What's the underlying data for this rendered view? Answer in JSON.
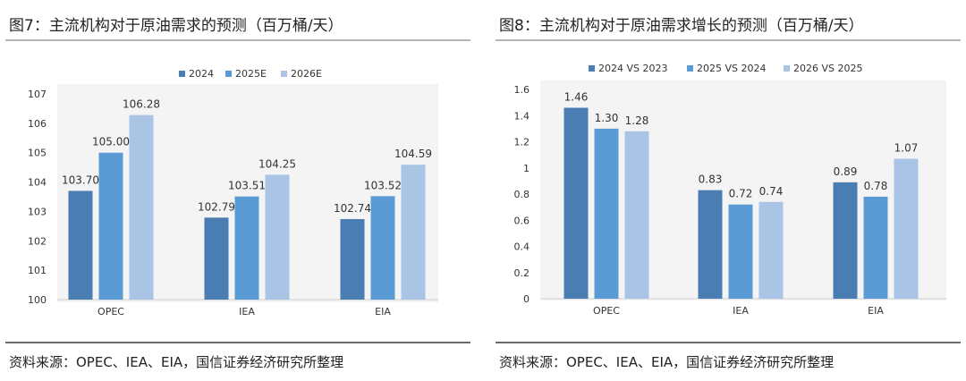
{
  "left": {
    "title": "图7：主流机构对于原油需求的预测（百万桶/天）",
    "source": "资料来源：OPEC、IEA、EIA，国信证券经济研究所整理"
  },
  "right": {
    "title": "图8：主流机构对于原油需求增长的预测（百万桶/天）",
    "source": "资料来源：OPEC、IEA、EIA，国信证券经济研究所整理"
  },
  "chart_data": [
    {
      "type": "bar",
      "title": "图7：主流机构对于原油需求的预测（百万桶/天）",
      "categories": [
        "OPEC",
        "IEA",
        "EIA"
      ],
      "series": [
        {
          "name": "2024",
          "values": [
            103.7,
            102.79,
            102.74
          ],
          "labels": [
            "103.70",
            "102.79",
            "102.74"
          ],
          "color": "#4a7eb3"
        },
        {
          "name": "2025E",
          "values": [
            105.0,
            103.51,
            103.52
          ],
          "labels": [
            "105.00",
            "103.51",
            "103.52"
          ],
          "color": "#5b9bd5"
        },
        {
          "name": "2026E",
          "values": [
            106.28,
            104.25,
            104.59
          ],
          "labels": [
            "106.28",
            "104.25",
            "104.59"
          ],
          "color": "#a9c4e4"
        }
      ],
      "ylim": [
        100,
        107
      ],
      "yticks": [
        100,
        101,
        102,
        103,
        104,
        105,
        106,
        107
      ],
      "ytick_labels": [
        "100",
        "101",
        "102",
        "103",
        "104",
        "105",
        "106",
        "107"
      ],
      "grid": false,
      "legend_position": "top"
    },
    {
      "type": "bar",
      "title": "图8：主流机构对于原油需求增长的预测（百万桶/天）",
      "categories": [
        "OPEC",
        "IEA",
        "EIA"
      ],
      "series": [
        {
          "name": "2024 VS 2023",
          "values": [
            1.46,
            0.83,
            0.89
          ],
          "labels": [
            "1.46",
            "0.83",
            "0.89"
          ],
          "color": "#4a7eb3"
        },
        {
          "name": "2025 VS 2024",
          "values": [
            1.3,
            0.72,
            0.78
          ],
          "labels": [
            "1.30",
            "0.72",
            "0.78"
          ],
          "color": "#5b9bd5"
        },
        {
          "name": "2026 VS 2025",
          "values": [
            1.28,
            0.74,
            1.07
          ],
          "labels": [
            "1.28",
            "0.74",
            "1.07"
          ],
          "color": "#a9c4e4"
        }
      ],
      "ylim": [
        0,
        1.6
      ],
      "yticks": [
        0,
        0.2,
        0.4,
        0.6,
        0.8,
        1,
        1.2,
        1.4,
        1.6
      ],
      "ytick_labels": [
        "0",
        "0.2",
        "0.4",
        "0.6",
        "0.8",
        "1",
        "1.2",
        "1.4",
        "1.6"
      ],
      "grid": false,
      "legend_position": "top"
    }
  ]
}
